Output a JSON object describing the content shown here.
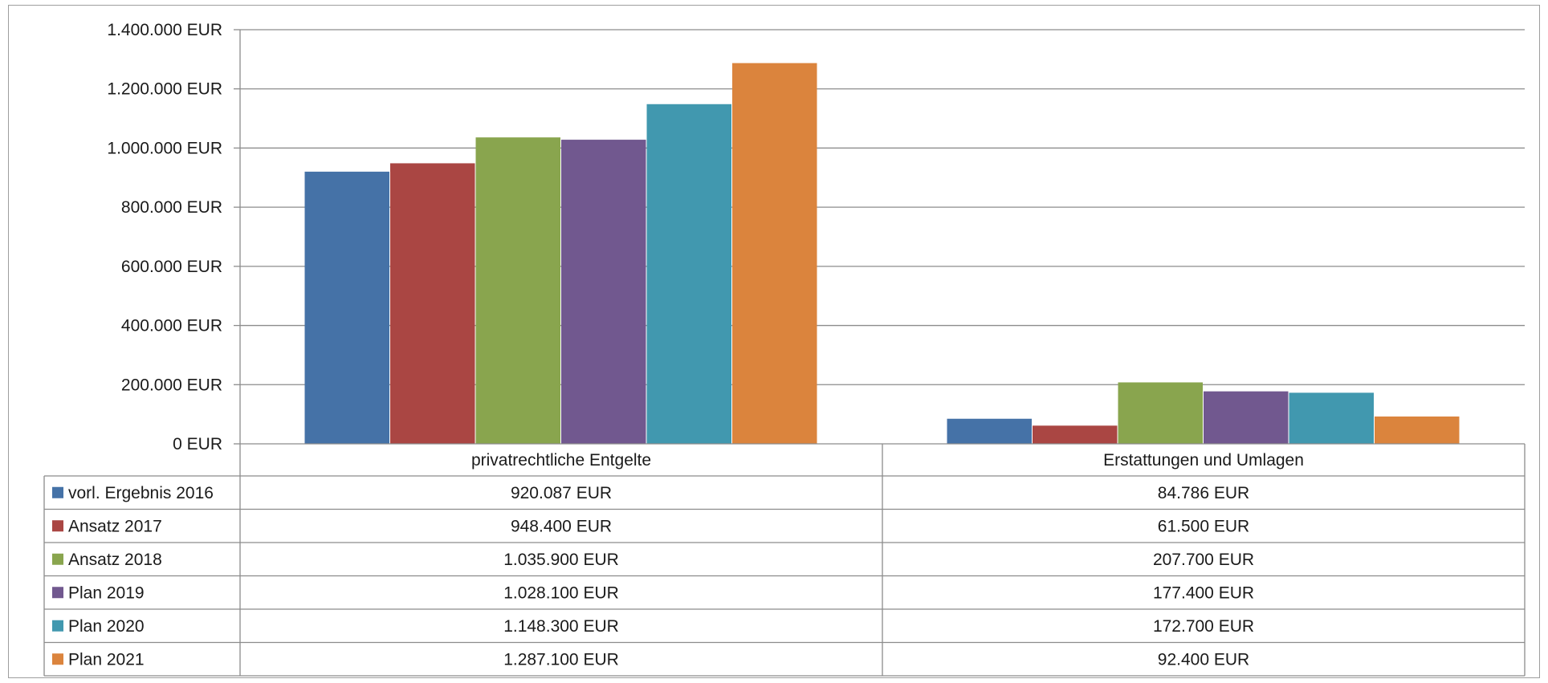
{
  "chart_data": {
    "type": "bar",
    "categories": [
      "privatrechtliche Entgelte",
      "Erstattungen und Umlagen"
    ],
    "series": [
      {
        "name": "vorl. Ergebnis 2016",
        "color": "#4572a7",
        "values": [
          920087,
          84786
        ],
        "labels": [
          "920.087 EUR",
          "84.786 EUR"
        ]
      },
      {
        "name": "Ansatz 2017",
        "color": "#aa4643",
        "values": [
          948400,
          61500
        ],
        "labels": [
          "948.400 EUR",
          "61.500 EUR"
        ]
      },
      {
        "name": "Ansatz 2018",
        "color": "#89a54e",
        "values": [
          1035900,
          207700
        ],
        "labels": [
          "1.035.900 EUR",
          "207.700 EUR"
        ]
      },
      {
        "name": "Plan 2019",
        "color": "#71588f",
        "values": [
          1028100,
          177400
        ],
        "labels": [
          "1.028.100 EUR",
          "177.400 EUR"
        ]
      },
      {
        "name": "Plan 2020",
        "color": "#4198af",
        "values": [
          1148300,
          172700
        ],
        "labels": [
          "1.148.300 EUR",
          "172.700 EUR"
        ]
      },
      {
        "name": "Plan 2021",
        "color": "#db843d",
        "values": [
          1287100,
          92400
        ],
        "labels": [
          "1.287.100 EUR",
          "92.400 EUR"
        ]
      }
    ],
    "yticks": [
      {
        "value": 0,
        "label": "0 EUR"
      },
      {
        "value": 200000,
        "label": "200.000 EUR"
      },
      {
        "value": 400000,
        "label": "400.000 EUR"
      },
      {
        "value": 600000,
        "label": "600.000 EUR"
      },
      {
        "value": 800000,
        "label": "800.000 EUR"
      },
      {
        "value": 1000000,
        "label": "1.000.000 EUR"
      },
      {
        "value": 1200000,
        "label": "1.200.000 EUR"
      },
      {
        "value": 1400000,
        "label": "1.400.000 EUR"
      }
    ],
    "ylim": [
      0,
      1400000
    ],
    "grid": true,
    "legend": "data-table",
    "title": "",
    "xlabel": "",
    "ylabel": ""
  }
}
